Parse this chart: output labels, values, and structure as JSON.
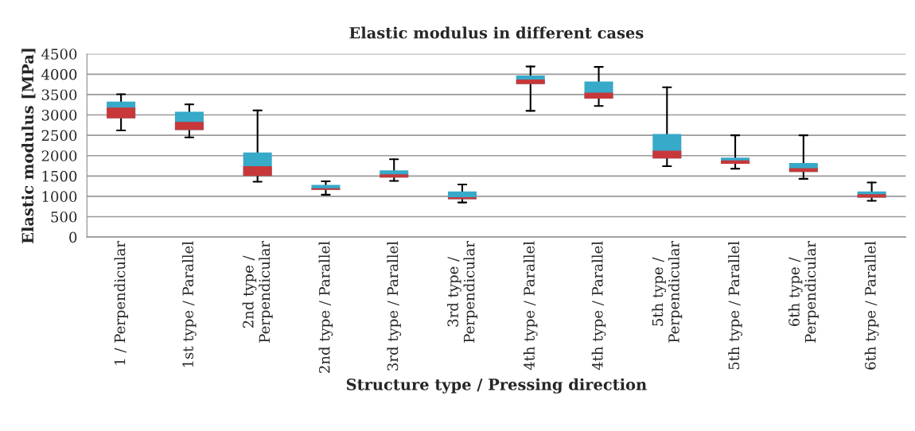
{
  "chart_data": {
    "type": "box",
    "title": "Elastic modulus in different cases",
    "xlabel": "Structure type / Pressing direction",
    "ylabel": "Elastic modulus [MPa]",
    "categories": [
      "1 / Perpendicular",
      "1st type / Parallel",
      "2nd type /\nPerpendicular",
      "2nd type / Parallel",
      "3rd type / Parallel",
      "3rd type /\nPerpendicular",
      "4th type / Parallel",
      "4th type / Parallel",
      "5th type /\nPerpendicular",
      "5th type / Parallel",
      "6th type /\nPerpendicular",
      "6th type / Parallel"
    ],
    "color": "#c8383a",
    "series": [
      {
        "color": "#37a9c9",
        "boxes": [
          {
            "low": 2620,
            "q1": 2920,
            "median": 3180,
            "q3": 3330,
            "high": 3510
          },
          {
            "low": 2450,
            "q1": 2630,
            "median": 2830,
            "q3": 3080,
            "high": 3260
          },
          {
            "low": 1360,
            "q1": 1500,
            "median": 1740,
            "q3": 2080,
            "high": 3110
          },
          {
            "low": 1040,
            "q1": 1160,
            "median": 1200,
            "q3": 1280,
            "high": 1370
          },
          {
            "low": 1380,
            "q1": 1460,
            "median": 1540,
            "q3": 1640,
            "high": 1910
          },
          {
            "low": 850,
            "q1": 930,
            "median": 980,
            "q3": 1120,
            "high": 1290
          },
          {
            "low": 3100,
            "q1": 3760,
            "median": 3870,
            "q3": 3970,
            "high": 4190
          },
          {
            "low": 3220,
            "q1": 3400,
            "median": 3550,
            "q3": 3820,
            "high": 4180
          },
          {
            "low": 1740,
            "q1": 1930,
            "median": 2120,
            "q3": 2530,
            "high": 3680
          },
          {
            "low": 1680,
            "q1": 1800,
            "median": 1880,
            "q3": 1950,
            "high": 2500
          },
          {
            "low": 1430,
            "q1": 1600,
            "median": 1690,
            "q3": 1820,
            "high": 2500
          },
          {
            "low": 890,
            "q1": 970,
            "median": 1050,
            "q3": 1120,
            "high": 1340
          }
        ]
      }
    ],
    "ylim": [
      0,
      4500
    ],
    "yticks": [
      0,
      500,
      1000,
      1500,
      2000,
      2500,
      3000,
      3500,
      4000,
      4500
    ],
    "grid": "y"
  }
}
